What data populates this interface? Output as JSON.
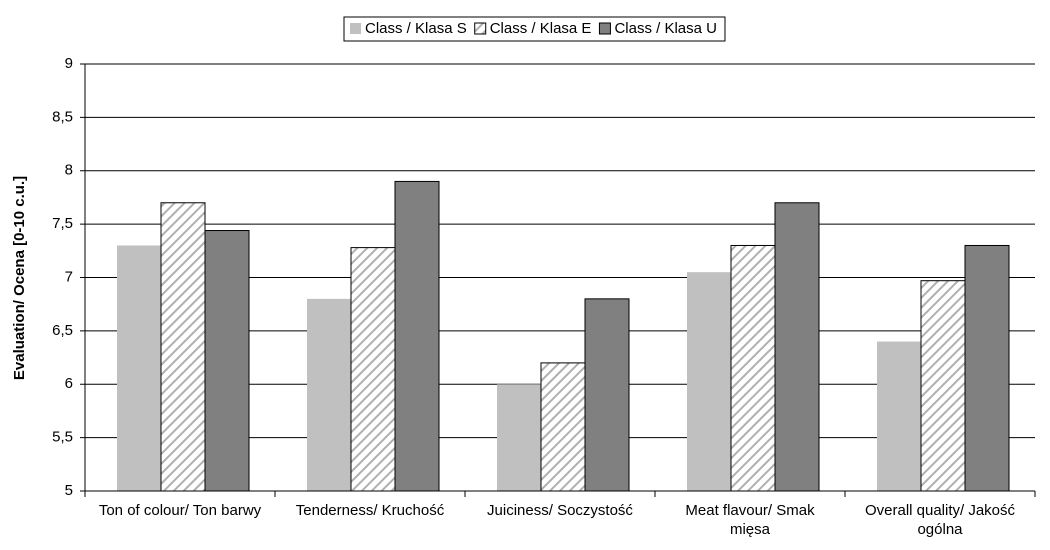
{
  "chart_data": {
    "type": "bar",
    "y_label": "Evaluation/ Ocena [0-10 c.u.]",
    "categories": [
      "Ton of colour/ Ton barwy",
      "Tenderness/ Kruchość",
      "Juiciness/ Soczystość",
      "Meat flavour/  Smak mięsa",
      "Overall quality/ Jakość ogólna"
    ],
    "series": [
      {
        "name": "Class / Klasa S",
        "color": "#c0c0c0",
        "hatch": false,
        "values": [
          7.3,
          6.8,
          6.0,
          7.05,
          6.4
        ]
      },
      {
        "name": "Class / Klasa E",
        "color": "#b0b0b0",
        "hatch": true,
        "values": [
          7.7,
          7.28,
          6.2,
          7.3,
          6.97
        ]
      },
      {
        "name": "Class / Klasa U",
        "color": "#808080",
        "hatch": false,
        "values": [
          7.44,
          7.9,
          6.8,
          7.7,
          7.3
        ]
      }
    ],
    "ylim": [
      5,
      9
    ],
    "yticks": [
      5,
      {
        "value": 5.5,
        "label": "5,5"
      },
      6,
      {
        "value": 6.5,
        "label": "6,5"
      },
      7,
      {
        "value": 7.5,
        "label": "7,5"
      },
      8,
      {
        "value": 8.5,
        "label": "8,5"
      },
      9
    ],
    "grid": true,
    "legend": "top"
  }
}
